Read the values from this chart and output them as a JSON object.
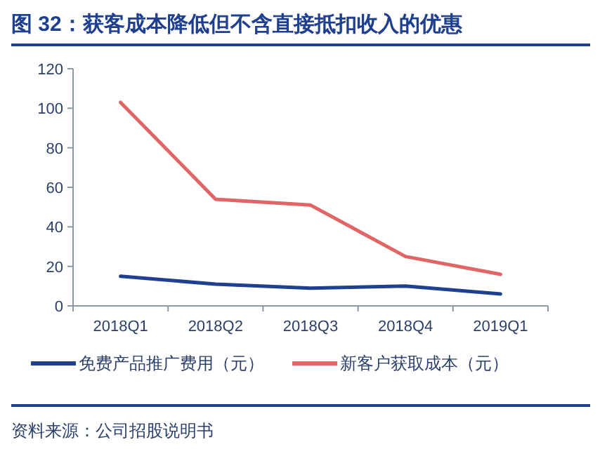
{
  "chart_data": {
    "type": "line",
    "title": "图 32：获客成本降低但不含直接抵扣收入的优惠",
    "categories": [
      "2018Q1",
      "2018Q2",
      "2018Q3",
      "2018Q4",
      "2019Q1"
    ],
    "series": [
      {
        "name": "免费产品推广费用（元）",
        "color": "#1f3f8f",
        "values": [
          15,
          11,
          9,
          10,
          6
        ]
      },
      {
        "name": "新客户获取成本（元）",
        "color": "#e06666",
        "values": [
          103,
          54,
          51,
          25,
          16
        ]
      }
    ],
    "ylim": [
      0,
      120
    ],
    "yticks": [
      0,
      20,
      40,
      60,
      80,
      100,
      120
    ],
    "grid": false,
    "legend": "bottom",
    "marker": "none",
    "line_style": "solid",
    "annotations": [
      "资料来源：公司招股说明书"
    ]
  }
}
